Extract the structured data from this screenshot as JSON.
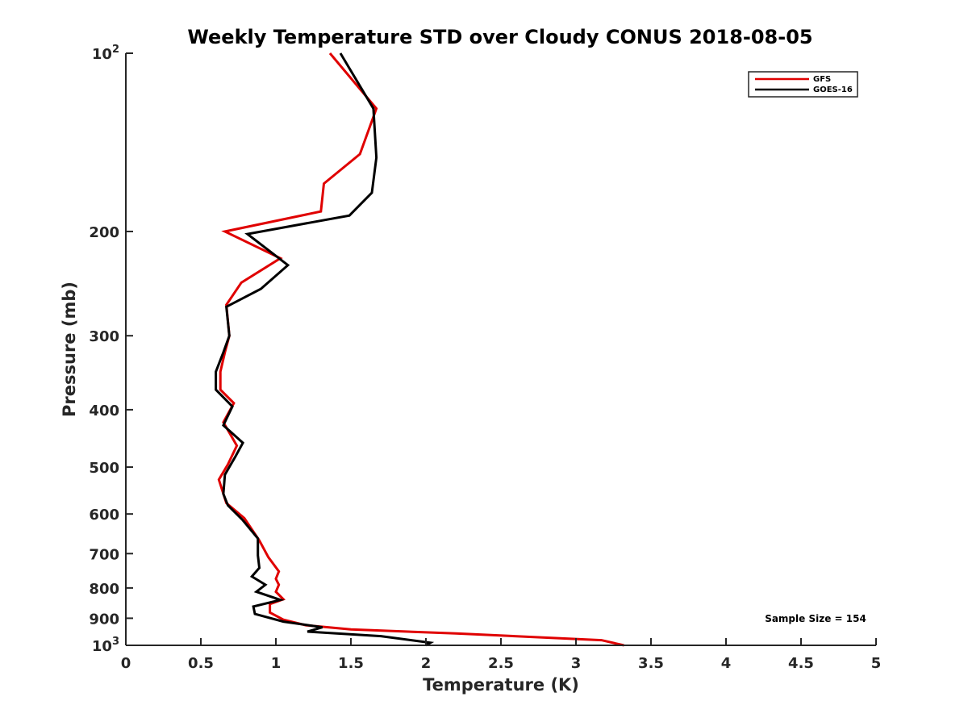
{
  "chart_data": {
    "type": "line",
    "title": "Weekly Temperature STD over Cloudy CONUS 2018-08-05",
    "xlabel": "Temperature (K)",
    "ylabel": "Pressure (mb)",
    "xlim": [
      0,
      5
    ],
    "ylim": [
      100,
      1000
    ],
    "y_scale": "log",
    "y_reversed": true,
    "grid": false,
    "legend_position": "top-right",
    "x_ticks": [
      "0",
      "0.5",
      "1",
      "1.5",
      "2",
      "2.5",
      "3",
      "3.5",
      "4",
      "4.5",
      "5"
    ],
    "y_ticks": [
      {
        "value": 100,
        "base": "10",
        "exp": "2"
      },
      {
        "value": 200,
        "label": "200"
      },
      {
        "value": 300,
        "label": "300"
      },
      {
        "value": 400,
        "label": "400"
      },
      {
        "value": 500,
        "label": "500"
      },
      {
        "value": 600,
        "label": "600"
      },
      {
        "value": 700,
        "label": "700"
      },
      {
        "value": 800,
        "label": "800"
      },
      {
        "value": 900,
        "label": "900"
      },
      {
        "value": 1000,
        "base": "10",
        "exp": "3"
      }
    ],
    "annotation": "Sample Size = 154",
    "series": [
      {
        "name": "GFS",
        "color": "#e00000",
        "points": [
          [
            1.36,
            100
          ],
          [
            1.67,
            124
          ],
          [
            1.56,
            148
          ],
          [
            1.32,
            166
          ],
          [
            1.3,
            185
          ],
          [
            0.66,
            200
          ],
          [
            1.03,
            222
          ],
          [
            0.77,
            244
          ],
          [
            0.67,
            266
          ],
          [
            0.69,
            300
          ],
          [
            0.66,
            320
          ],
          [
            0.63,
            345
          ],
          [
            0.63,
            370
          ],
          [
            0.72,
            390
          ],
          [
            0.65,
            420
          ],
          [
            0.74,
            460
          ],
          [
            0.68,
            495
          ],
          [
            0.62,
            525
          ],
          [
            0.67,
            575
          ],
          [
            0.79,
            610
          ],
          [
            0.89,
            665
          ],
          [
            0.95,
            710
          ],
          [
            1.02,
            750
          ],
          [
            1.0,
            772
          ],
          [
            1.02,
            790
          ],
          [
            1.0,
            812
          ],
          [
            1.05,
            836
          ],
          [
            0.96,
            852
          ],
          [
            0.96,
            880
          ],
          [
            1.05,
            905
          ],
          [
            1.2,
            925
          ],
          [
            1.5,
            940
          ],
          [
            2.2,
            955
          ],
          [
            3.17,
            980
          ],
          [
            3.32,
            1000
          ]
        ]
      },
      {
        "name": "GOES-16",
        "color": "#000000",
        "points": [
          [
            1.43,
            100
          ],
          [
            1.65,
            124
          ],
          [
            1.67,
            150
          ],
          [
            1.64,
            172
          ],
          [
            1.49,
            188
          ],
          [
            0.81,
            202
          ],
          [
            1.08,
            228
          ],
          [
            0.9,
            250
          ],
          [
            0.67,
            268
          ],
          [
            0.69,
            300
          ],
          [
            0.65,
            320
          ],
          [
            0.6,
            345
          ],
          [
            0.6,
            370
          ],
          [
            0.71,
            395
          ],
          [
            0.65,
            425
          ],
          [
            0.78,
            455
          ],
          [
            0.73,
            480
          ],
          [
            0.66,
            515
          ],
          [
            0.65,
            555
          ],
          [
            0.68,
            580
          ],
          [
            0.78,
            615
          ],
          [
            0.88,
            660
          ],
          [
            0.88,
            705
          ],
          [
            0.89,
            740
          ],
          [
            0.84,
            765
          ],
          [
            0.93,
            790
          ],
          [
            0.87,
            812
          ],
          [
            1.03,
            838
          ],
          [
            0.85,
            860
          ],
          [
            0.86,
            885
          ],
          [
            1.05,
            912
          ],
          [
            1.31,
            932
          ],
          [
            1.21,
            948
          ],
          [
            1.7,
            965
          ],
          [
            2.03,
            990
          ],
          [
            2.0,
            1000
          ]
        ]
      }
    ]
  }
}
